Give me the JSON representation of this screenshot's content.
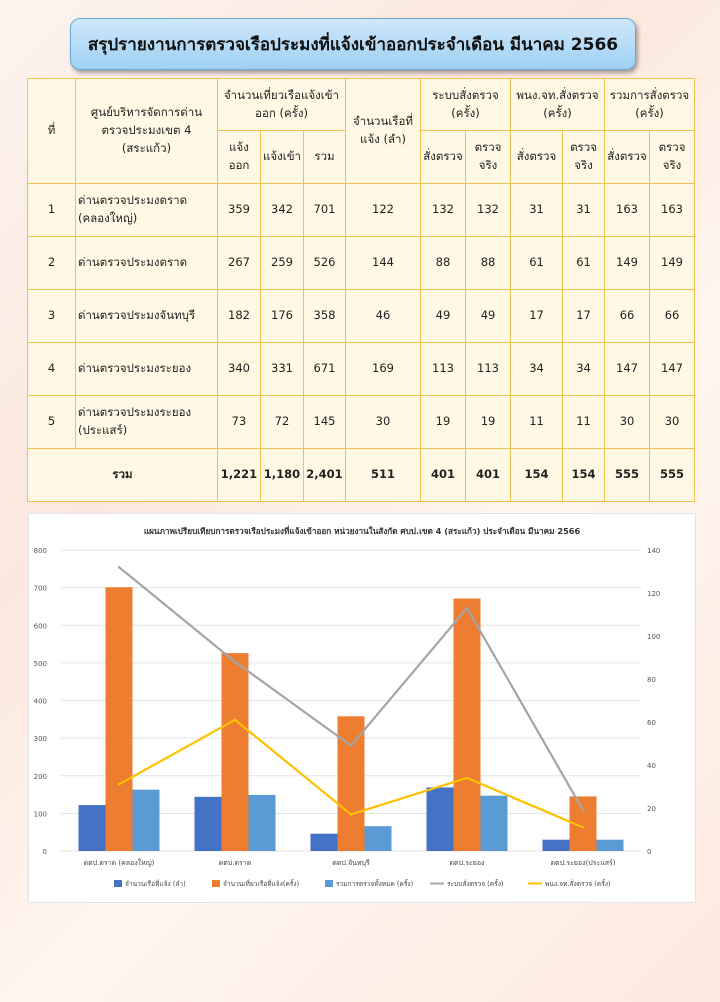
{
  "title": "สรุปรายงานการตรวจเรือประมงที่แจ้งเข้าออกประจำเดือน มีนาคม 2566",
  "table": {
    "headers": {
      "no": "ที่",
      "center": "ศูนย์บริหารจัดการด่านตรวจประมงเขต 4 (สระแก้ว)",
      "trips": "จำนวนเที่ยวเรือแจ้งเข้าออก (ครั้ง)",
      "trips_out": "แจ้งออก",
      "trips_in": "แจ้งเข้า",
      "trips_total": "รวม",
      "vessels": "จำนวนเรือที่แจ้ง (ลำ)",
      "system": "ระบบสั่งตรวจ (ครั้ง)",
      "officer": "พนง.จท.สั่งตรวจ (ครั้ง)",
      "combined": "รวมการสั่งตรวจ (ครั้ง)",
      "ordered": "สั่งตรวจ",
      "inspected": "ตรวจจริง"
    },
    "rows": [
      {
        "no": "1",
        "name": "ด่านตรวจประมงตราด (คลองใหญ่)",
        "out": "359",
        "in": "342",
        "total": "701",
        "vessels": "122",
        "sys_order": "132",
        "sys_insp": "132",
        "off_order": "31",
        "off_insp": "31",
        "all_order": "163",
        "all_insp": "163"
      },
      {
        "no": "2",
        "name": "ด่านตรวจประมงตราด",
        "out": "267",
        "in": "259",
        "total": "526",
        "vessels": "144",
        "sys_order": "88",
        "sys_insp": "88",
        "off_order": "61",
        "off_insp": "61",
        "all_order": "149",
        "all_insp": "149"
      },
      {
        "no": "3",
        "name": "ด่านตรวจประมงจันทบุรี",
        "out": "182",
        "in": "176",
        "total": "358",
        "vessels": "46",
        "sys_order": "49",
        "sys_insp": "49",
        "off_order": "17",
        "off_insp": "17",
        "all_order": "66",
        "all_insp": "66"
      },
      {
        "no": "4",
        "name": "ด่านตรวจประมงระยอง",
        "out": "340",
        "in": "331",
        "total": "671",
        "vessels": "169",
        "sys_order": "113",
        "sys_insp": "113",
        "off_order": "34",
        "off_insp": "34",
        "all_order": "147",
        "all_insp": "147"
      },
      {
        "no": "5",
        "name": "ด่านตรวจประมงระยอง (ประแสร์)",
        "out": "73",
        "in": "72",
        "total": "145",
        "vessels": "30",
        "sys_order": "19",
        "sys_insp": "19",
        "off_order": "11",
        "off_insp": "11",
        "all_order": "30",
        "all_insp": "30"
      }
    ],
    "total": {
      "label": "รวม",
      "out": "1,221",
      "in": "1,180",
      "total": "2,401",
      "vessels": "511",
      "sys_order": "401",
      "sys_insp": "401",
      "off_order": "154",
      "off_insp": "154",
      "all_order": "555",
      "all_insp": "555"
    }
  },
  "chart_data": {
    "type": "bar",
    "title": "แผนภาพเปรียบเทียบการตรวจเรือประมงที่แจ้งเข้าออก หน่วยงานในสังกัด ศบป.เขต 4 (สระแก้ว) ประจำเดือน มีนาคม 2566",
    "categories": [
      "ดตป.ตราด (คลองใหญ่)",
      "ดตป.ตราด",
      "ดตป.จันทบุรี",
      "ดตป.ระยอง",
      "ดตป.ระยอง(ประแสร์)"
    ],
    "ylim": [
      0,
      800
    ],
    "y_ticks": [
      0,
      100,
      200,
      300,
      400,
      500,
      600,
      700,
      800
    ],
    "y2lim": [
      0,
      140
    ],
    "y2_ticks": [
      0,
      20,
      40,
      60,
      80,
      100,
      120,
      140
    ],
    "grid": true,
    "legend_position": "bottom",
    "series": [
      {
        "name": "จำนวนเรือที่แจ้ง (ลำ)",
        "type": "bar",
        "axis": "left",
        "color": "#4472c4",
        "values": [
          122,
          144,
          46,
          169,
          30
        ]
      },
      {
        "name": "จำนวนเที่ยวเรือที่แจ้ง(ครั้ง)",
        "type": "bar",
        "axis": "left",
        "color": "#ed7d31",
        "values": [
          701,
          526,
          358,
          671,
          145
        ]
      },
      {
        "name": "รวมการตรวจทั้งหมด (ครั้ง)",
        "type": "bar",
        "axis": "left",
        "color": "#5b9bd5",
        "values": [
          163,
          149,
          66,
          147,
          30
        ]
      },
      {
        "name": "ระบบสั่งตรวจ (ครั้ง)",
        "type": "line",
        "axis": "right",
        "color": "#a5a5a5",
        "values": [
          132,
          88,
          49,
          113,
          19
        ]
      },
      {
        "name": "พนง.จท.สั่งตรวจ (ครั้ง)",
        "type": "line",
        "axis": "right",
        "color": "#ffc000",
        "values": [
          31,
          61,
          17,
          34,
          11
        ]
      }
    ]
  }
}
